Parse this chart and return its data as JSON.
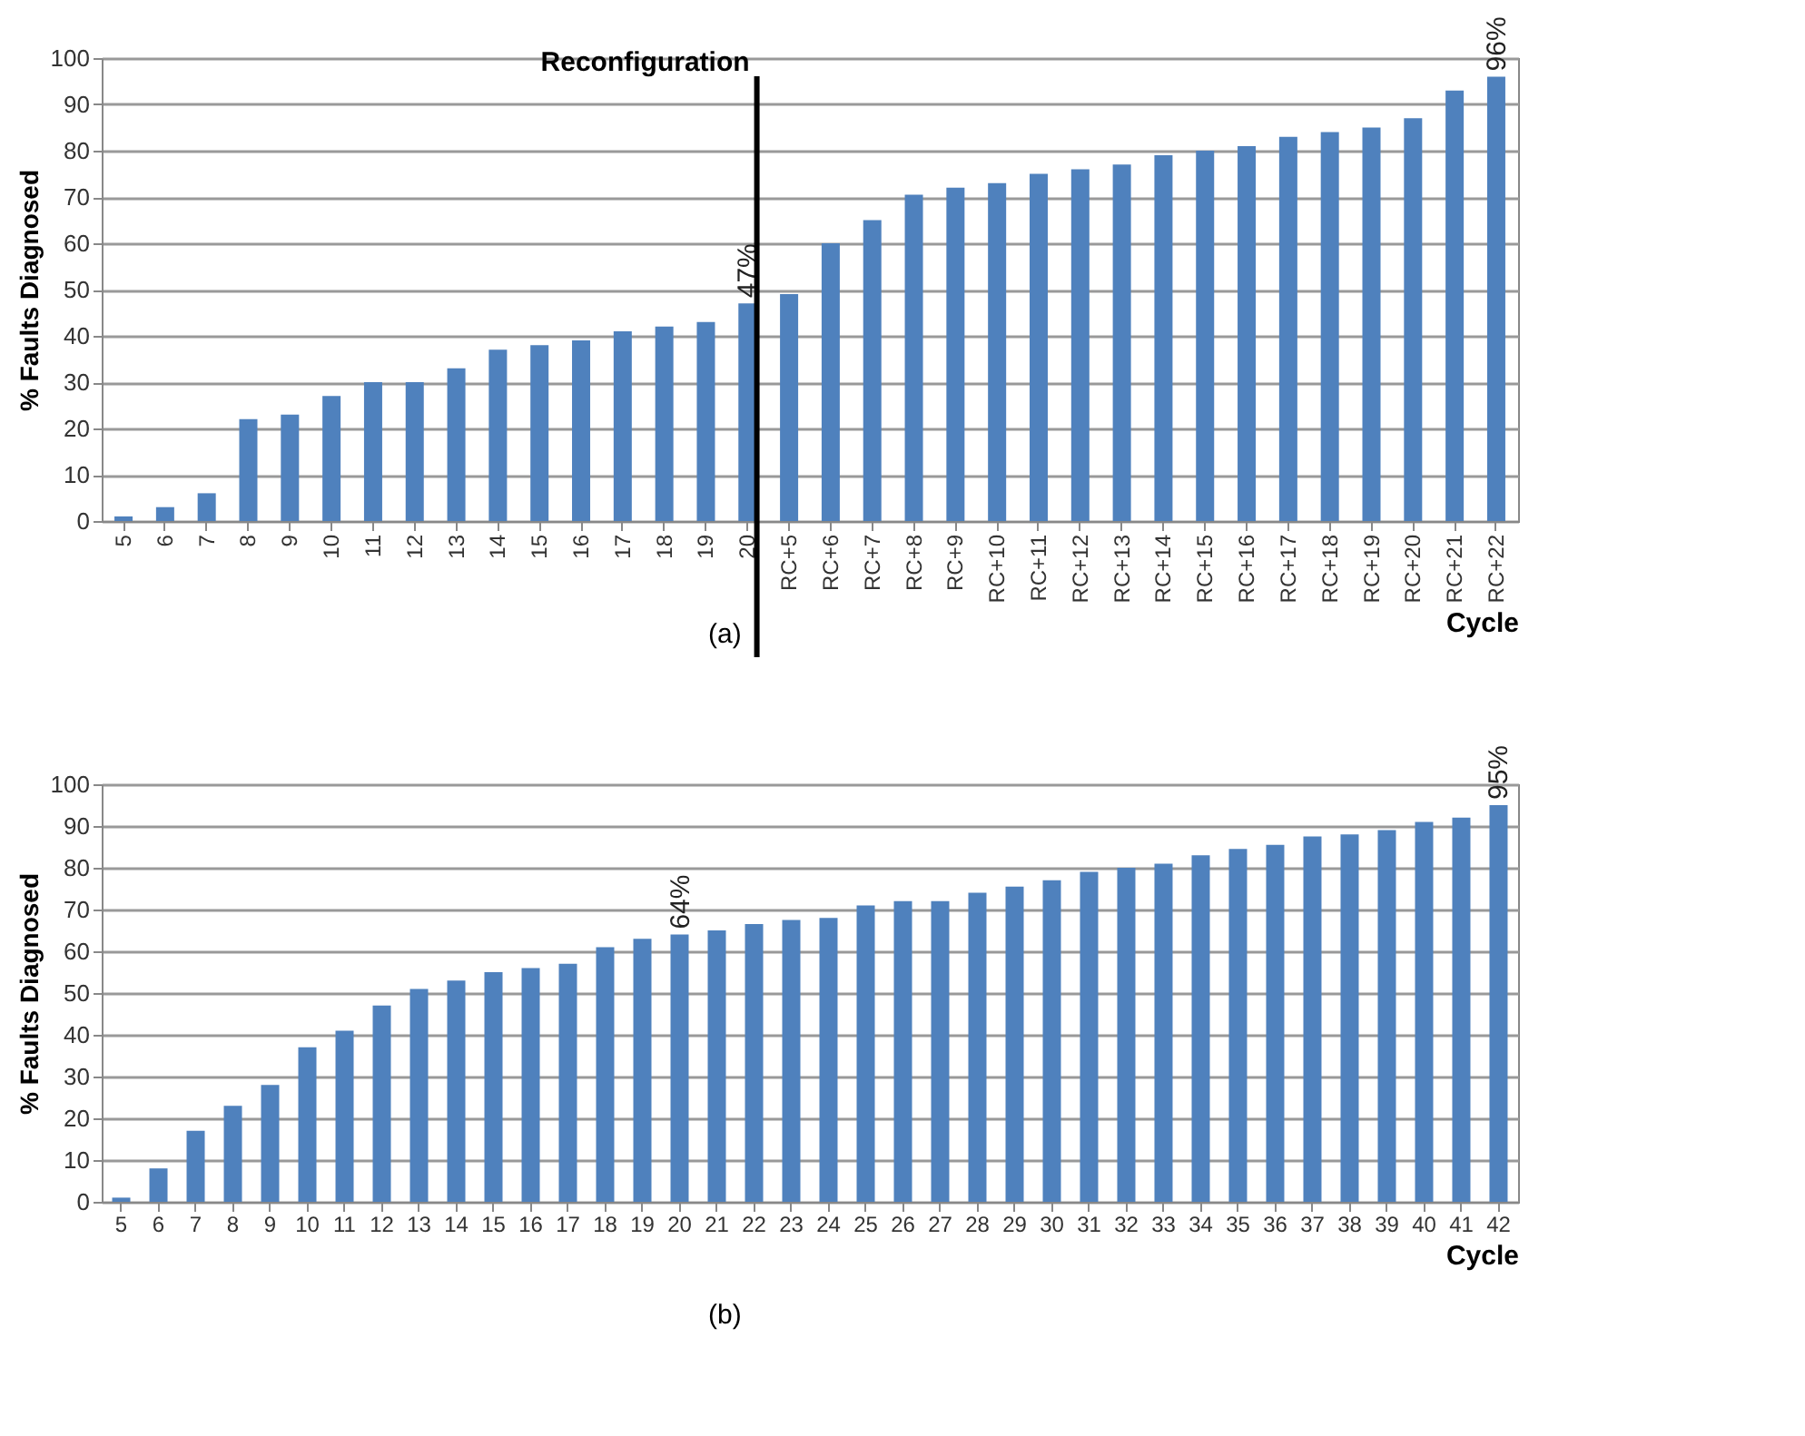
{
  "chart_data": [
    {
      "type": "bar",
      "xlabel": "Cycle",
      "ylabel": "% Faults Diagnosed",
      "color": "#4f81bd",
      "categories": [
        "5",
        "6",
        "7",
        "8",
        "9",
        "10",
        "11",
        "12",
        "13",
        "14",
        "15",
        "16",
        "17",
        "18",
        "19",
        "20",
        "RC+5",
        "RC+6",
        "RC+7",
        "RC+8",
        "RC+9",
        "RC+10",
        "RC+11",
        "RC+12",
        "RC+13",
        "RC+14",
        "RC+15",
        "RC+16",
        "RC+17",
        "RC+18",
        "RC+19",
        "RC+20",
        "RC+21",
        "RC+22"
      ],
      "values": [
        1,
        3,
        6,
        22,
        23,
        27,
        30,
        30,
        33,
        37,
        38,
        39,
        41,
        42,
        43,
        47,
        49,
        60,
        65,
        70.5,
        72,
        73,
        75,
        76,
        77,
        79,
        80,
        81,
        83,
        84,
        85,
        87,
        93,
        96
      ],
      "value_labels": [
        null,
        null,
        null,
        null,
        null,
        null,
        null,
        null,
        null,
        null,
        null,
        null,
        null,
        null,
        null,
        "47%",
        null,
        null,
        null,
        null,
        null,
        null,
        null,
        null,
        null,
        null,
        null,
        null,
        null,
        null,
        null,
        null,
        null,
        "96%"
      ],
      "ylim": [
        0,
        100
      ],
      "yticks": [
        0,
        10,
        20,
        30,
        40,
        50,
        60,
        70,
        80,
        90,
        100
      ],
      "grid": "y",
      "ref_lines": [
        {
          "axis": "x",
          "value": "20",
          "label": "Reconfiguration",
          "color": "#000000"
        }
      ],
      "annotations": [
        "(a)"
      ]
    },
    {
      "type": "bar",
      "xlabel": "Cycle",
      "ylabel": "% Faults Diagnosed",
      "color": "#4f81bd",
      "categories": [
        "5",
        "6",
        "7",
        "8",
        "9",
        "10",
        "11",
        "12",
        "13",
        "14",
        "15",
        "16",
        "17",
        "18",
        "19",
        "20",
        "21",
        "22",
        "23",
        "24",
        "25",
        "26",
        "27",
        "28",
        "29",
        "30",
        "31",
        "32",
        "33",
        "34",
        "35",
        "36",
        "37",
        "38",
        "39",
        "40",
        "41",
        "42"
      ],
      "values": [
        1,
        8,
        17,
        23,
        28,
        37,
        41,
        47,
        51,
        53,
        55,
        56,
        57,
        61,
        63,
        64,
        65,
        66.5,
        67.5,
        68,
        71,
        72,
        72,
        74,
        75.5,
        77,
        79,
        80,
        81,
        83,
        84.5,
        85.5,
        87.5,
        88,
        89,
        91,
        92,
        95
      ],
      "value_labels": [
        null,
        null,
        null,
        null,
        null,
        null,
        null,
        null,
        null,
        null,
        null,
        null,
        null,
        null,
        null,
        "64%",
        null,
        null,
        null,
        null,
        null,
        null,
        null,
        null,
        null,
        null,
        null,
        null,
        null,
        null,
        null,
        null,
        null,
        null,
        null,
        null,
        null,
        "95%"
      ],
      "ylim": [
        0,
        100
      ],
      "yticks": [
        0,
        10,
        20,
        30,
        40,
        50,
        60,
        70,
        80,
        90,
        100
      ],
      "grid": "y",
      "annotations": [
        "(b)"
      ]
    }
  ]
}
